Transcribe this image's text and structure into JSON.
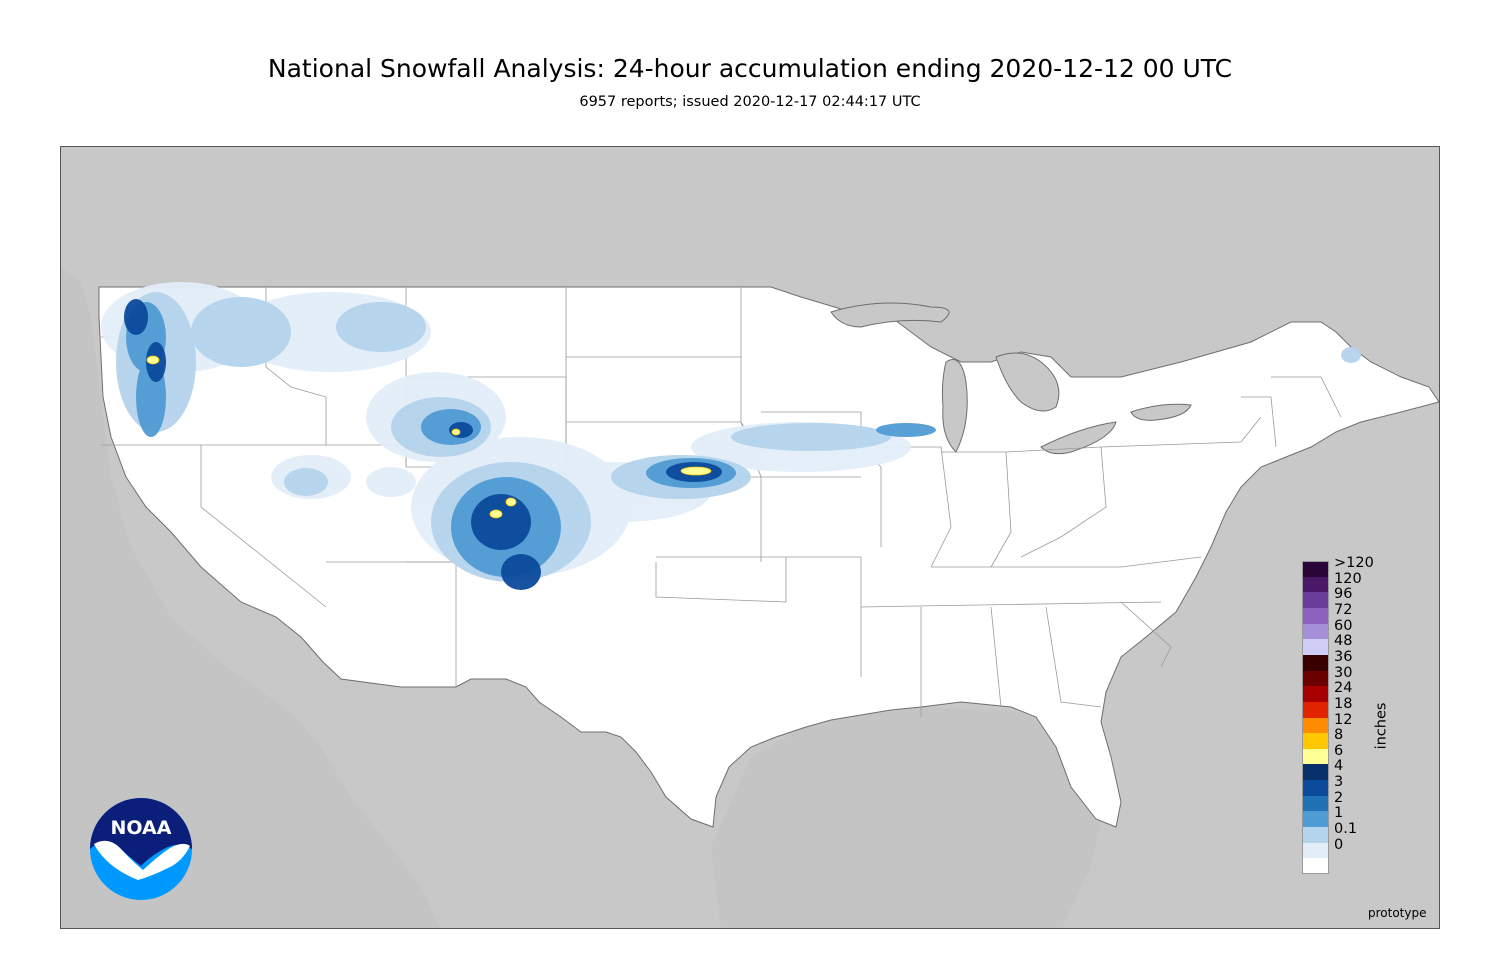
{
  "title": "National Snowfall Analysis: 24-hour accumulation ending 2020-12-12 00 UTC",
  "subtitle": "6957 reports; issued 2020-12-17 02:44:17 UTC",
  "units_label": "inches",
  "footnote": "prototype",
  "logo_text": "NOAA",
  "legend": [
    {
      "label": ">120",
      "color": "#2a0537"
    },
    {
      "label": "120",
      "color": "#4b1769"
    },
    {
      "label": "96",
      "color": "#6a3e9a"
    },
    {
      "label": "72",
      "color": "#8c62bf"
    },
    {
      "label": "60",
      "color": "#a48fd8"
    },
    {
      "label": "48",
      "color": "#cfccf5"
    },
    {
      "label": "36",
      "color": "#3a0000"
    },
    {
      "label": "30",
      "color": "#6b0000"
    },
    {
      "label": "24",
      "color": "#a80000"
    },
    {
      "label": "18",
      "color": "#e02400"
    },
    {
      "label": "12",
      "color": "#ff8c00"
    },
    {
      "label": "8",
      "color": "#ffc800"
    },
    {
      "label": "6",
      "color": "#ffff96"
    },
    {
      "label": "4",
      "color": "#08306b"
    },
    {
      "label": "3",
      "color": "#0c4a9c"
    },
    {
      "label": "2",
      "color": "#2171b5"
    },
    {
      "label": "1",
      "color": "#4f9bd4"
    },
    {
      "label": "0.1",
      "color": "#b4d3ec"
    },
    {
      "label": "0",
      "color": "#e3eef9"
    },
    {
      "label": "",
      "color": "#ffffff"
    }
  ],
  "colors": {
    "background_land": "#c8c8c8",
    "conus": "#ffffff",
    "water": "#c8c8c8",
    "border": "#4d4d4d"
  }
}
